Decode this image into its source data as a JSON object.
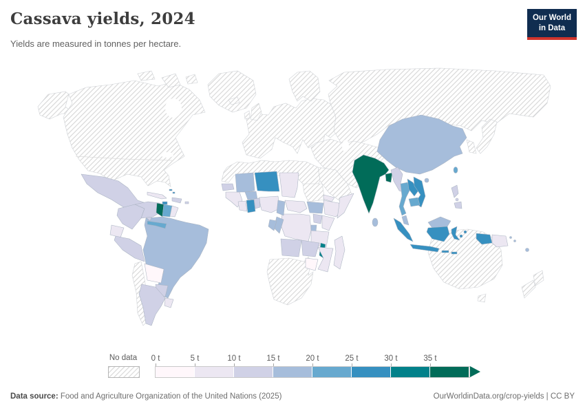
{
  "header": {
    "title": "Cassava yields, 2024",
    "subtitle": "Yields are measured in tonnes per hectare.",
    "logo": {
      "line1": "Our World",
      "line2": "in Data",
      "bg_color": "#102d50",
      "accent_color": "#d0342c"
    }
  },
  "legend": {
    "no_data_label": "No data",
    "tick_labels": [
      "0 t",
      "5 t",
      "10 t",
      "15 t",
      "20 t",
      "25 t",
      "30 t",
      "35 t"
    ]
  },
  "footer": {
    "source_label": "Data source:",
    "source_text": " Food and Agriculture Organization of the United Nations (2025)",
    "link_text": "OurWorldinData.org/crop-yields | CC BY"
  },
  "chart_data": {
    "type": "choropleth",
    "title": "Cassava yields, 2024",
    "unit": "tonnes per hectare",
    "legend_position": "bottom",
    "bins": [
      {
        "range": "0-5 t",
        "color": "#fff7fb"
      },
      {
        "range": "5-10 t",
        "color": "#ece7f2"
      },
      {
        "range": "10-15 t",
        "color": "#d0d1e6"
      },
      {
        "range": "15-20 t",
        "color": "#a6bddb"
      },
      {
        "range": "20-25 t",
        "color": "#67a9cf"
      },
      {
        "range": "25-30 t",
        "color": "#3690c0"
      },
      {
        "range": "30-35 t",
        "color": "#02818a"
      },
      {
        "range": "35+ t",
        "color": "#016c59"
      }
    ],
    "no_data_style": "diagonal-hatch",
    "countries": {
      "Mexico": 2,
      "Guatemala": 1,
      "Nicaragua": 2,
      "Costa Rica": 4,
      "Panama": 4,
      "Cuba": 1,
      "Jamaica": 5,
      "Haiti": 2,
      "Puerto Rico": 2,
      "Bahamas": 5,
      "Colombia": 2,
      "Venezuela": 2,
      "Guyana": 7,
      "Suriname": 4,
      "French Guiana": 1,
      "Ecuador": 1,
      "Peru": 2,
      "Brazil": 3,
      "Bolivia": 0,
      "Paraguay": 2,
      "Argentina": 2,
      "Uruguay": 1,
      "Senegal": 2,
      "Guinea": 1,
      "Mali": 3,
      "Burkina Faso": 3,
      "Niger": 5,
      "Chad": 1,
      "Nigeria": 1,
      "Ghana": 5,
      "Cote d'Ivoire": 1,
      "Togo": 2,
      "Cameroon": 3,
      "Central African Republic": 1,
      "South Sudan": 3,
      "Eritrea": 1,
      "Ethiopia": 1,
      "Somalia": 1,
      "Kenya": 1,
      "Uganda": 2,
      "Rwanda": 3,
      "Tanzania": 1,
      "DR Congo": 1,
      "Congo": 3,
      "Gabon": 3,
      "Angola": 2,
      "Zambia": 2,
      "Malawi": 6,
      "Mozambique": 1,
      "Zimbabwe": 0,
      "Madagascar": 1,
      "China": 3,
      "India": 7,
      "Bangladesh": 7,
      "Sri Lanka": 3,
      "Myanmar": 2,
      "Thailand": 4,
      "Laos": 5,
      "Vietnam": 5,
      "Cambodia": 4,
      "Malaysia": 3,
      "Indonesia": 5,
      "Philippines": 2,
      "Taiwan": 4,
      "Papua New Guinea": 1,
      "Fiji": 3,
      "Solomon Islands": 3
    }
  }
}
